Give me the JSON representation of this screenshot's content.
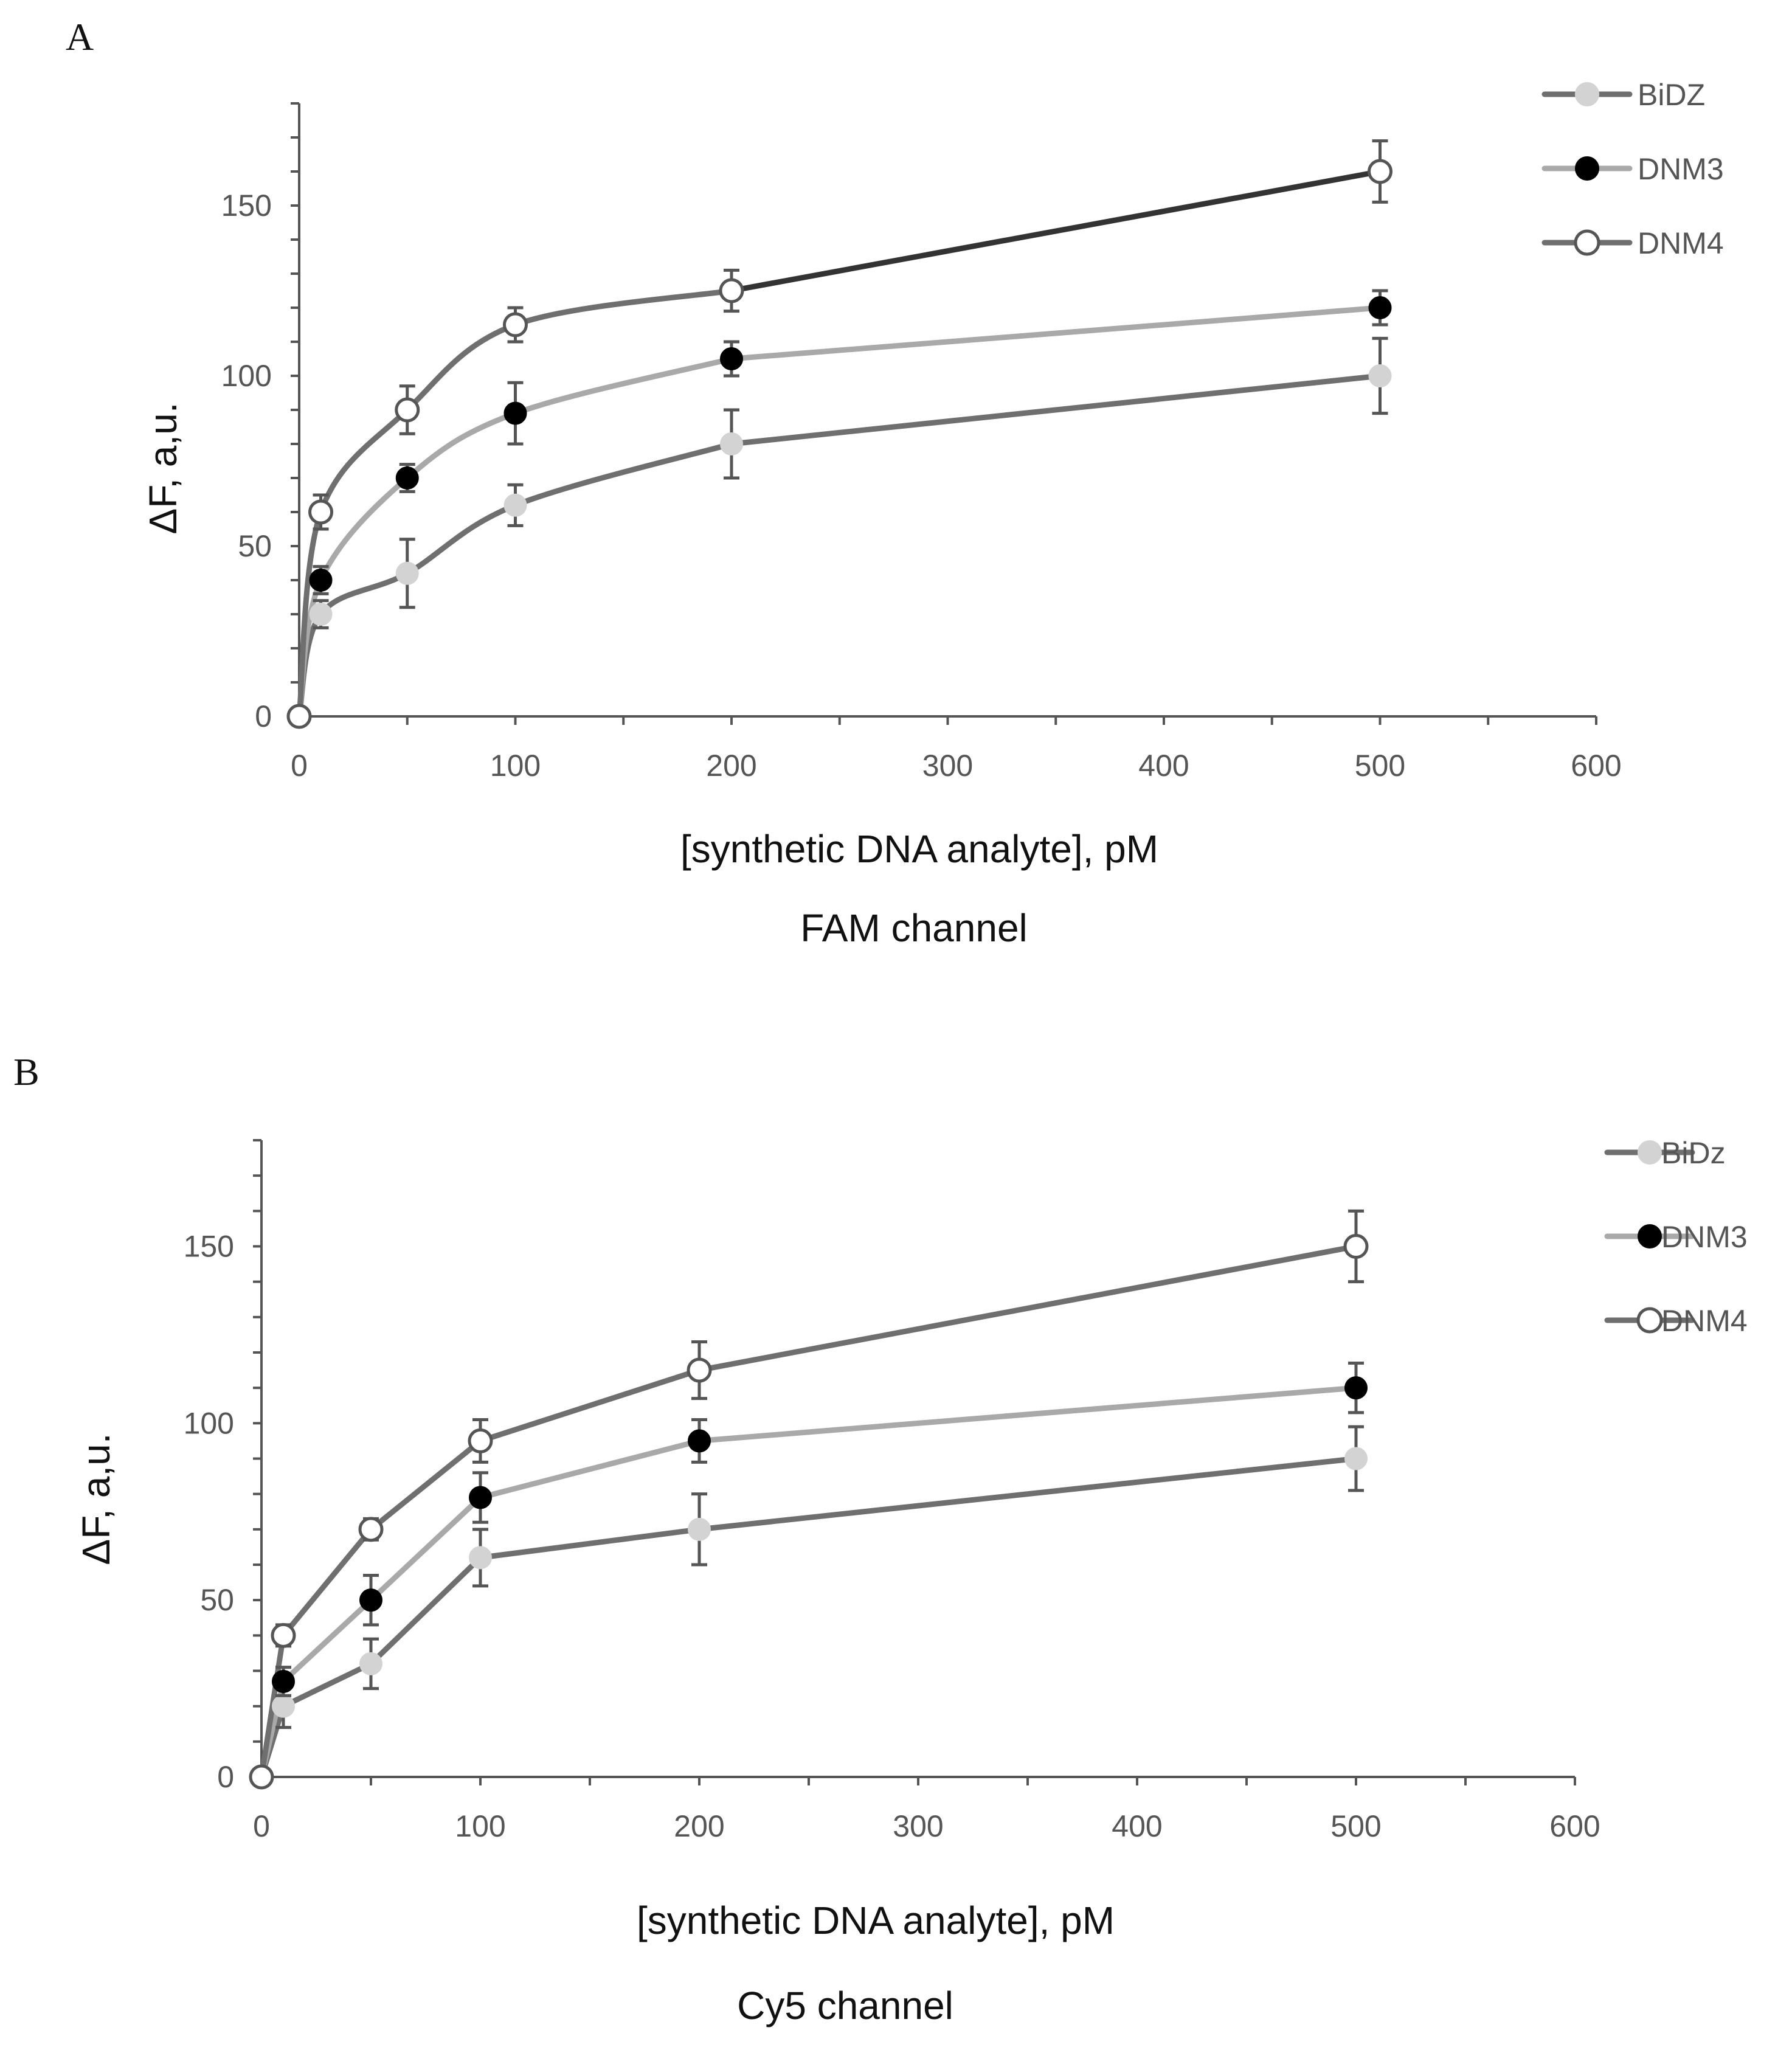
{
  "colors": {
    "bidz": "#6f6f6f",
    "dnm3": "#a9a9a9",
    "dnm4": "#6f6f6f",
    "dnm4_last_segment": "#333333",
    "marker_light": "#d3d3d3",
    "marker_dark": "#000000",
    "marker_open": "#ffffff",
    "axis": "#555555"
  },
  "chart_data": [
    {
      "panel": "A",
      "type": "line",
      "xlabel": "[synthetic DNA analyte], pM",
      "subtitle": "FAM channel",
      "ylabel": "ΔF, a,u.",
      "xlim": [
        0,
        600
      ],
      "ylim": [
        0,
        180
      ],
      "xticks": [
        0,
        100,
        200,
        300,
        400,
        500,
        600
      ],
      "yticks": [
        0,
        50,
        100,
        150
      ],
      "smooth": true,
      "legend_position": "top-right",
      "x": [
        0,
        10,
        50,
        100,
        200,
        500
      ],
      "series": [
        {
          "name": "BiDZ",
          "marker": "light",
          "values": [
            0,
            30,
            42,
            62,
            80,
            100
          ],
          "errors": [
            0,
            4,
            10,
            6,
            10,
            11
          ]
        },
        {
          "name": "DNM3",
          "marker": "dark",
          "values": [
            0,
            40,
            70,
            89,
            105,
            120
          ],
          "errors": [
            0,
            4,
            4,
            9,
            5,
            5
          ]
        },
        {
          "name": "DNM4",
          "marker": "open",
          "values": [
            0,
            60,
            90,
            115,
            125,
            160
          ],
          "errors": [
            0,
            5,
            7,
            5,
            6,
            9
          ]
        }
      ]
    },
    {
      "panel": "B",
      "type": "line",
      "xlabel": "[synthetic DNA analyte], pM",
      "subtitle": "Cy5 channel",
      "ylabel": "ΔF, a,u.",
      "xlim": [
        0,
        600
      ],
      "ylim": [
        0,
        180
      ],
      "xticks": [
        0,
        100,
        200,
        300,
        400,
        500,
        600
      ],
      "yticks": [
        0,
        50,
        100,
        150
      ],
      "smooth": false,
      "legend_position": "top-right",
      "x": [
        0,
        10,
        50,
        100,
        200,
        500
      ],
      "series": [
        {
          "name": "BiDz",
          "marker": "light",
          "values": [
            0,
            20,
            32,
            62,
            70,
            90
          ],
          "errors": [
            0,
            6,
            7,
            8,
            10,
            9
          ]
        },
        {
          "name": "DNM3",
          "marker": "dark",
          "values": [
            0,
            27,
            50,
            79,
            95,
            110
          ],
          "errors": [
            0,
            4,
            7,
            7,
            6,
            7
          ]
        },
        {
          "name": "DNM4",
          "marker": "open",
          "values": [
            0,
            40,
            70,
            95,
            115,
            150
          ],
          "errors": [
            0,
            3,
            3,
            6,
            8,
            10
          ]
        }
      ]
    }
  ]
}
